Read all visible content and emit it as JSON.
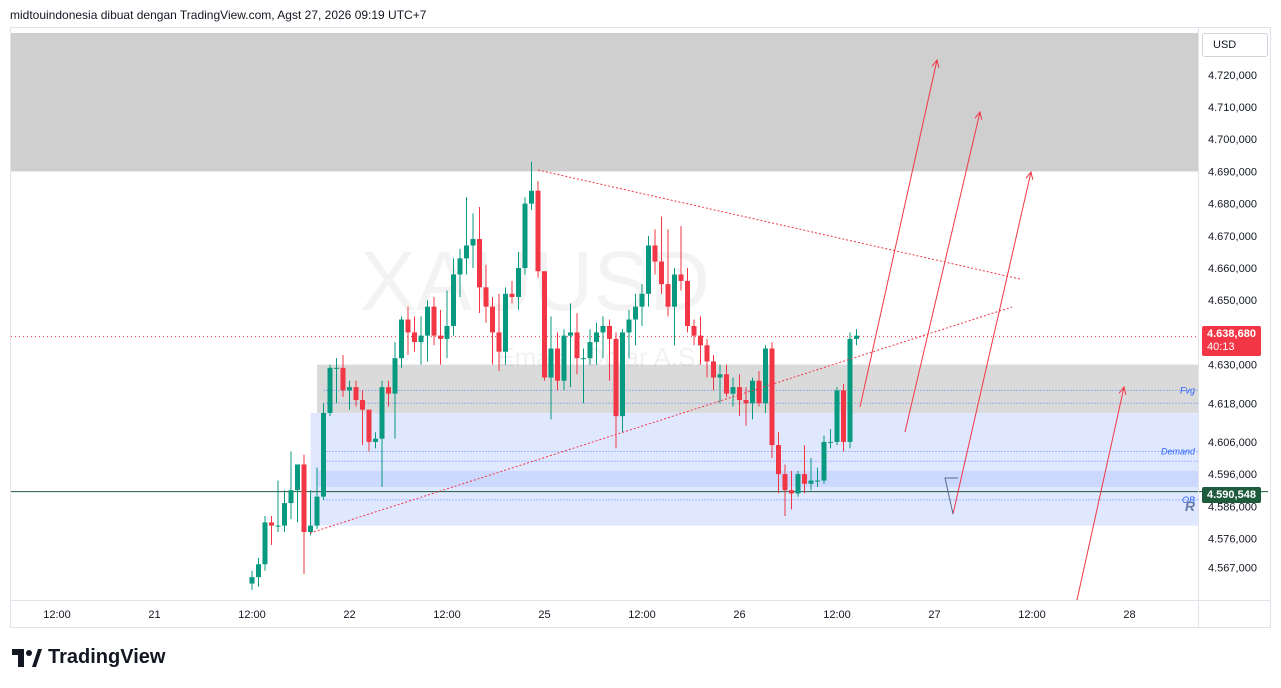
{
  "header": {
    "text": "midtouindonesia dibuat dengan TradingView.com, Agst 27, 2026 09:19 UTC+7"
  },
  "watermark": {
    "symbol": "XAUUSD",
    "description": "Emas / Dolar A.S."
  },
  "currency": "USD",
  "footer": {
    "brand": "TradingView"
  },
  "colors": {
    "up": "#089981",
    "down": "#f23645",
    "zone_gray": "#d0d0d0",
    "zone_blue": "#dbe6ff",
    "annotation": "#f23645",
    "level_line": "#1e5a3c"
  },
  "price_labels": {
    "last_price": "4.638,680",
    "countdown": "40:13",
    "level_price": "4.590,548"
  },
  "chart_data": {
    "type": "candlestick",
    "title": "",
    "ylim": [
      4558,
      4733
    ],
    "y_ticks": [
      {
        "value": 4720,
        "label": "4.720,000"
      },
      {
        "value": 4710,
        "label": "4.710,000"
      },
      {
        "value": 4700,
        "label": "4.700,000"
      },
      {
        "value": 4690,
        "label": "4.690,000"
      },
      {
        "value": 4680,
        "label": "4.680,000"
      },
      {
        "value": 4670,
        "label": "4.670,000"
      },
      {
        "value": 4660,
        "label": "4.660,000"
      },
      {
        "value": 4650,
        "label": "4.650,000"
      },
      {
        "value": 4630,
        "label": "4.630,000"
      },
      {
        "value": 4618,
        "label": "4.618,000"
      },
      {
        "value": 4606,
        "label": "4.606,000"
      },
      {
        "value": 4596,
        "label": "4.596,000"
      },
      {
        "value": 4586,
        "label": "4.586,000"
      },
      {
        "value": 4576,
        "label": "4.576,000"
      },
      {
        "value": 4567,
        "label": "4.567,000"
      }
    ],
    "x_labels": [
      {
        "bar": -30,
        "label": "12:00"
      },
      {
        "bar": -15,
        "label": "21"
      },
      {
        "bar": 0,
        "label": "12:00"
      },
      {
        "bar": 15,
        "label": "22"
      },
      {
        "bar": 30,
        "label": "12:00"
      },
      {
        "bar": 45,
        "label": "25"
      },
      {
        "bar": 60,
        "label": "12:00"
      },
      {
        "bar": 75,
        "label": "26"
      },
      {
        "bar": 90,
        "label": "12:00"
      },
      {
        "bar": 105,
        "label": "27"
      },
      {
        "bar": 120,
        "label": "12:00"
      },
      {
        "bar": 135,
        "label": "28"
      }
    ],
    "candles": [
      {
        "o": 4562,
        "h": 4566,
        "l": 4560,
        "c": 4564
      },
      {
        "o": 4564,
        "h": 4570,
        "l": 4561,
        "c": 4568
      },
      {
        "o": 4568,
        "h": 4583,
        "l": 4566,
        "c": 4581
      },
      {
        "o": 4581,
        "h": 4583,
        "l": 4574,
        "c": 4580
      },
      {
        "o": 4580,
        "h": 4594,
        "l": 4578,
        "c": 4580
      },
      {
        "o": 4580,
        "h": 4591,
        "l": 4578,
        "c": 4587
      },
      {
        "o": 4587,
        "h": 4603,
        "l": 4582,
        "c": 4591
      },
      {
        "o": 4591,
        "h": 4599,
        "l": 4581,
        "c": 4599
      },
      {
        "o": 4599,
        "h": 4602,
        "l": 4565,
        "c": 4578
      },
      {
        "o": 4578,
        "h": 4591,
        "l": 4577,
        "c": 4580
      },
      {
        "o": 4580,
        "h": 4598,
        "l": 4579,
        "c": 4589
      },
      {
        "o": 4589,
        "h": 4618,
        "l": 4588,
        "c": 4615
      },
      {
        "o": 4615,
        "h": 4630,
        "l": 4614,
        "c": 4629
      },
      {
        "o": 4629,
        "h": 4632,
        "l": 4618,
        "c": 4629
      },
      {
        "o": 4629,
        "h": 4633,
        "l": 4620,
        "c": 4622
      },
      {
        "o": 4622,
        "h": 4625,
        "l": 4616,
        "c": 4623
      },
      {
        "o": 4623,
        "h": 4625,
        "l": 4617,
        "c": 4619
      },
      {
        "o": 4619,
        "h": 4622,
        "l": 4605,
        "c": 4616
      },
      {
        "o": 4616,
        "h": 4616,
        "l": 4603,
        "c": 4606
      },
      {
        "o": 4606,
        "h": 4609,
        "l": 4604,
        "c": 4607
      },
      {
        "o": 4607,
        "h": 4625,
        "l": 4592,
        "c": 4623
      },
      {
        "o": 4623,
        "h": 4625,
        "l": 4617,
        "c": 4621
      },
      {
        "o": 4621,
        "h": 4637,
        "l": 4607,
        "c": 4632
      },
      {
        "o": 4632,
        "h": 4645,
        "l": 4629,
        "c": 4644
      },
      {
        "o": 4644,
        "h": 4648,
        "l": 4633,
        "c": 4640
      },
      {
        "o": 4640,
        "h": 4645,
        "l": 4634,
        "c": 4637
      },
      {
        "o": 4637,
        "h": 4645,
        "l": 4630,
        "c": 4639
      },
      {
        "o": 4639,
        "h": 4650,
        "l": 4631,
        "c": 4648
      },
      {
        "o": 4648,
        "h": 4651,
        "l": 4636,
        "c": 4639
      },
      {
        "o": 4639,
        "h": 4647,
        "l": 4630,
        "c": 4638
      },
      {
        "o": 4638,
        "h": 4653,
        "l": 4632,
        "c": 4642
      },
      {
        "o": 4642,
        "h": 4663,
        "l": 4639,
        "c": 4658
      },
      {
        "o": 4658,
        "h": 4666,
        "l": 4651,
        "c": 4663
      },
      {
        "o": 4663,
        "h": 4682,
        "l": 4658,
        "c": 4667
      },
      {
        "o": 4667,
        "h": 4677,
        "l": 4660,
        "c": 4669
      },
      {
        "o": 4669,
        "h": 4679,
        "l": 4646,
        "c": 4654
      },
      {
        "o": 4654,
        "h": 4661,
        "l": 4643,
        "c": 4648
      },
      {
        "o": 4648,
        "h": 4651,
        "l": 4630,
        "c": 4640
      },
      {
        "o": 4640,
        "h": 4652,
        "l": 4628,
        "c": 4634
      },
      {
        "o": 4634,
        "h": 4654,
        "l": 4630,
        "c": 4652
      },
      {
        "o": 4652,
        "h": 4656,
        "l": 4649,
        "c": 4651
      },
      {
        "o": 4651,
        "h": 4665,
        "l": 4647,
        "c": 4660
      },
      {
        "o": 4660,
        "h": 4682,
        "l": 4658,
        "c": 4680
      },
      {
        "o": 4680,
        "h": 4693,
        "l": 4678,
        "c": 4684
      },
      {
        "o": 4684,
        "h": 4687,
        "l": 4657,
        "c": 4659
      },
      {
        "o": 4659,
        "h": 4658,
        "l": 4625,
        "c": 4626
      },
      {
        "o": 4626,
        "h": 4645,
        "l": 4613,
        "c": 4635
      },
      {
        "o": 4635,
        "h": 4640,
        "l": 4622,
        "c": 4625
      },
      {
        "o": 4625,
        "h": 4641,
        "l": 4622,
        "c": 4639
      },
      {
        "o": 4639,
        "h": 4649,
        "l": 4623,
        "c": 4640
      },
      {
        "o": 4640,
        "h": 4646,
        "l": 4627,
        "c": 4632
      },
      {
        "o": 4632,
        "h": 4635,
        "l": 4618,
        "c": 4632
      },
      {
        "o": 4632,
        "h": 4641,
        "l": 4630,
        "c": 4637
      },
      {
        "o": 4637,
        "h": 4643,
        "l": 4630,
        "c": 4640
      },
      {
        "o": 4640,
        "h": 4645,
        "l": 4632,
        "c": 4642
      },
      {
        "o": 4642,
        "h": 4644,
        "l": 4625,
        "c": 4638
      },
      {
        "o": 4638,
        "h": 4640,
        "l": 4604,
        "c": 4614
      },
      {
        "o": 4614,
        "h": 4641,
        "l": 4609,
        "c": 4640
      },
      {
        "o": 4640,
        "h": 4647,
        "l": 4632,
        "c": 4644
      },
      {
        "o": 4644,
        "h": 4652,
        "l": 4636,
        "c": 4648
      },
      {
        "o": 4648,
        "h": 4655,
        "l": 4642,
        "c": 4652
      },
      {
        "o": 4652,
        "h": 4670,
        "l": 4648,
        "c": 4667
      },
      {
        "o": 4667,
        "h": 4672,
        "l": 4658,
        "c": 4662
      },
      {
        "o": 4662,
        "h": 4676,
        "l": 4652,
        "c": 4655
      },
      {
        "o": 4655,
        "h": 4672,
        "l": 4645,
        "c": 4648
      },
      {
        "o": 4648,
        "h": 4660,
        "l": 4636,
        "c": 4658
      },
      {
        "o": 4658,
        "h": 4673,
        "l": 4653,
        "c": 4656
      },
      {
        "o": 4656,
        "h": 4660,
        "l": 4640,
        "c": 4642
      },
      {
        "o": 4642,
        "h": 4644,
        "l": 4636,
        "c": 4639
      },
      {
        "o": 4639,
        "h": 4645,
        "l": 4630,
        "c": 4636
      },
      {
        "o": 4636,
        "h": 4638,
        "l": 4626,
        "c": 4631
      },
      {
        "o": 4631,
        "h": 4633,
        "l": 4622,
        "c": 4626
      },
      {
        "o": 4626,
        "h": 4630,
        "l": 4618,
        "c": 4627
      },
      {
        "o": 4627,
        "h": 4630,
        "l": 4620,
        "c": 4621
      },
      {
        "o": 4621,
        "h": 4626,
        "l": 4617,
        "c": 4623
      },
      {
        "o": 4623,
        "h": 4627,
        "l": 4614,
        "c": 4619
      },
      {
        "o": 4619,
        "h": 4623,
        "l": 4611,
        "c": 4618
      },
      {
        "o": 4618,
        "h": 4626,
        "l": 4613,
        "c": 4625
      },
      {
        "o": 4625,
        "h": 4628,
        "l": 4617,
        "c": 4618
      },
      {
        "o": 4618,
        "h": 4636,
        "l": 4615,
        "c": 4635
      },
      {
        "o": 4635,
        "h": 4637,
        "l": 4601,
        "c": 4605
      },
      {
        "o": 4605,
        "h": 4609,
        "l": 4590,
        "c": 4596
      },
      {
        "o": 4596,
        "h": 4599,
        "l": 4583,
        "c": 4591
      },
      {
        "o": 4591,
        "h": 4597,
        "l": 4585,
        "c": 4590
      },
      {
        "o": 4590,
        "h": 4597,
        "l": 4589,
        "c": 4596
      },
      {
        "o": 4596,
        "h": 4605,
        "l": 4590,
        "c": 4593
      },
      {
        "o": 4593,
        "h": 4601,
        "l": 4591,
        "c": 4594
      },
      {
        "o": 4594,
        "h": 4598,
        "l": 4592,
        "c": 4594
      },
      {
        "o": 4594,
        "h": 4608,
        "l": 4593,
        "c": 4606
      },
      {
        "o": 4606,
        "h": 4610,
        "l": 4604,
        "c": 4606
      },
      {
        "o": 4606,
        "h": 4623,
        "l": 4605,
        "c": 4622
      },
      {
        "o": 4622,
        "h": 4624,
        "l": 4603,
        "c": 4606
      },
      {
        "o": 4606,
        "h": 4640,
        "l": 4604,
        "c": 4638
      },
      {
        "o": 4638,
        "h": 4641,
        "l": 4636,
        "c": 4639
      }
    ],
    "zones": [
      {
        "name": "supply-zone",
        "bar_from": -42,
        "price_from": 4690,
        "price_to": 4733,
        "color": "#cccccc"
      },
      {
        "name": "fvg-zone",
        "bar_from": 10,
        "price_from": 4615,
        "price_to": 4630,
        "color": "#d8d8d8"
      },
      {
        "name": "demand-zone",
        "bar_from": 9,
        "price_from": 4580,
        "price_to": 4615,
        "color": "#dde7ff"
      },
      {
        "name": "ob-zone",
        "bar_from": 10,
        "price_from": 4592,
        "price_to": 4597,
        "color": "#c9d8ff"
      }
    ],
    "zone_labels": [
      {
        "text": "Fvg",
        "price": 4622
      },
      {
        "text": "Demand",
        "price": 4603
      },
      {
        "text": "OB",
        "price": 4588
      },
      {
        "text": "R",
        "price": 4585.5
      }
    ],
    "dotted_levels": [
      {
        "price": 4622,
        "color": "#2962ff"
      },
      {
        "price": 4618,
        "color": "#2962ff"
      },
      {
        "price": 4603,
        "color": "#2962ff"
      },
      {
        "price": 4600,
        "color": "#2962ff"
      },
      {
        "price": 4588,
        "color": "#2962ff"
      }
    ],
    "level_line": {
      "price": 4590.548
    },
    "last_price": 4638.68
  }
}
